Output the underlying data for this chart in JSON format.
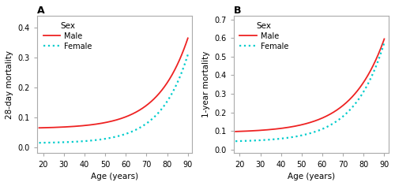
{
  "panel_A": {
    "title": "A",
    "xlabel": "Age (years)",
    "ylabel": "28-day mortality",
    "xlim": [
      17,
      92
    ],
    "ylim": [
      -0.02,
      0.44
    ],
    "yticks": [
      0.0,
      0.1,
      0.2,
      0.3,
      0.4
    ],
    "xticks": [
      20,
      30,
      40,
      50,
      60,
      70,
      80,
      90
    ],
    "male_age18": 0.065,
    "male_age90": 0.365,
    "male_steepness": 0.068,
    "male_midpoint": 62,
    "female_age18": 0.015,
    "female_age90": 0.31,
    "female_steepness": 0.075,
    "female_midpoint": 62
  },
  "panel_B": {
    "title": "B",
    "xlabel": "Age (years)",
    "ylabel": "1-year mortality",
    "xlim": [
      17,
      92
    ],
    "ylim": [
      -0.02,
      0.72
    ],
    "yticks": [
      0.0,
      0.1,
      0.2,
      0.3,
      0.4,
      0.5,
      0.6,
      0.7
    ],
    "xticks": [
      20,
      30,
      40,
      50,
      60,
      70,
      80,
      90
    ],
    "male_age18": 0.097,
    "male_age90": 0.595,
    "male_steepness": 0.062,
    "male_midpoint": 60,
    "female_age18": 0.045,
    "female_age90": 0.575,
    "female_steepness": 0.068,
    "female_midpoint": 62
  },
  "male_color": "#EE2222",
  "female_color": "#00CCCC",
  "line_width": 1.3,
  "legend_title": "Sex",
  "legend_male": "Male",
  "legend_female": "Female",
  "background_color": "#FFFFFF",
  "plot_bg_color": "#FFFFFF",
  "border_color": "#AAAAAA",
  "tick_label_size": 7,
  "axis_label_size": 7.5,
  "legend_fontsize": 7,
  "legend_title_fontsize": 7.5,
  "title_fontsize": 9
}
